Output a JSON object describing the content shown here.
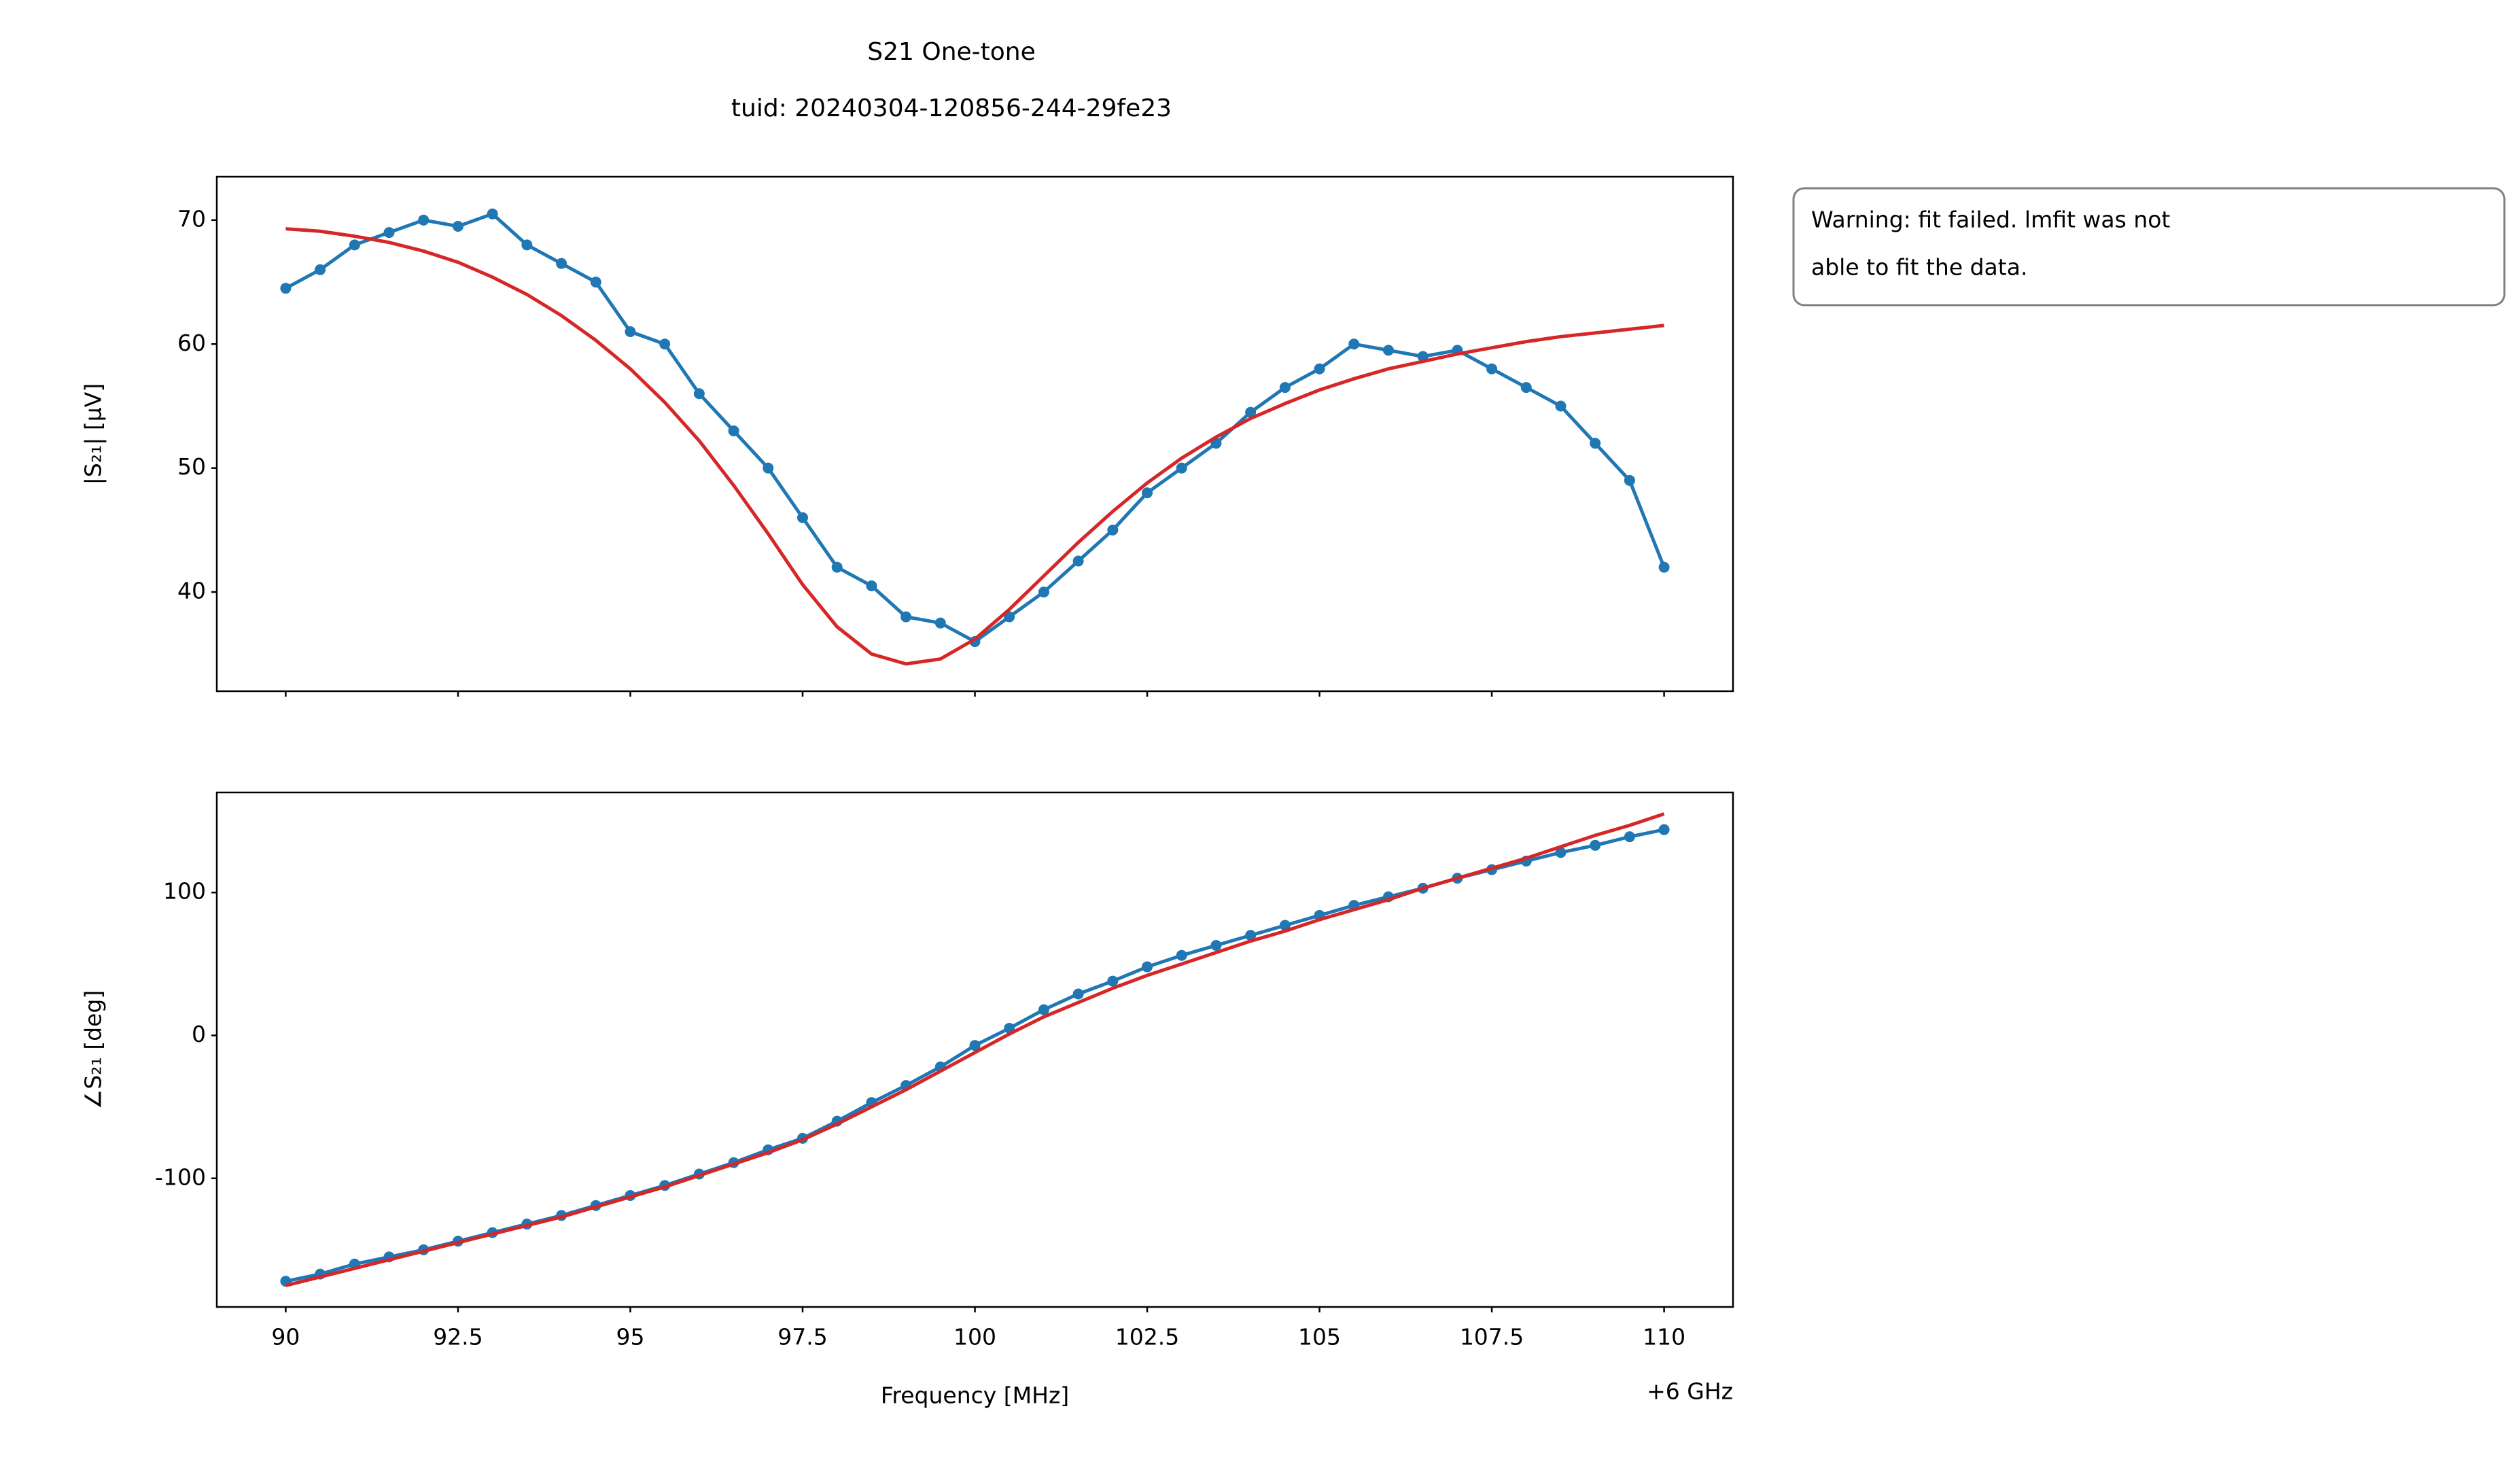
{
  "chart_data": [
    {
      "type": "line",
      "title": "S21 One-tone",
      "subtitle": "tuid: 20240304-120856-244-29fe23",
      "ylabel": "|S₂₁| [µV]",
      "annotation": [
        "Warning: fit failed. lmfit was not",
        "able to fit the data."
      ],
      "x": [
        90,
        90.5,
        91,
        91.5,
        92,
        92.5,
        93,
        93.5,
        94,
        94.5,
        95,
        95.5,
        96,
        96.5,
        97,
        97.5,
        98,
        98.5,
        99,
        99.5,
        100,
        100.5,
        101,
        101.5,
        102,
        102.5,
        103,
        103.5,
        104,
        104.5,
        105,
        105.5,
        106,
        106.5,
        107,
        107.5,
        108,
        108.5,
        109,
        109.5,
        110
      ],
      "xlim": [
        89,
        111
      ],
      "ylim": [
        32,
        73.5
      ],
      "yticks": [
        40,
        50,
        60,
        70
      ],
      "series": [
        {
          "color": "#1f77b4",
          "markers": true,
          "values": [
            64.5,
            66,
            68,
            69,
            70,
            69.5,
            70.5,
            68,
            66.5,
            65,
            61,
            60,
            56,
            53,
            50,
            46,
            42,
            40.5,
            38,
            37.5,
            36,
            38,
            40,
            42.5,
            45,
            48,
            50,
            52,
            54.5,
            56.5,
            58,
            60,
            59.5,
            59,
            59.5,
            58,
            56.5,
            55,
            52,
            49,
            42
          ]
        },
        {
          "color": "#d62728",
          "markers": false,
          "values": [
            69.3,
            69.1,
            68.7,
            68.2,
            67.5,
            66.6,
            65.4,
            64,
            62.3,
            60.3,
            58,
            55.3,
            52.2,
            48.6,
            44.7,
            40.6,
            37.2,
            35,
            34.2,
            34.6,
            36.2,
            38.6,
            41.3,
            44,
            46.5,
            48.8,
            50.8,
            52.5,
            54,
            55.2,
            56.3,
            57.2,
            58,
            58.6,
            59.2,
            59.7,
            60.2,
            60.6,
            60.9,
            61.2,
            61.5
          ]
        }
      ]
    },
    {
      "type": "line",
      "ylabel": "∠S₂₁ [deg]",
      "xlabel": "Frequency [MHz]",
      "x_offset_label": "+6 GHz",
      "x": [
        90,
        90.5,
        91,
        91.5,
        92,
        92.5,
        93,
        93.5,
        94,
        94.5,
        95,
        95.5,
        96,
        96.5,
        97,
        97.5,
        98,
        98.5,
        99,
        99.5,
        100,
        100.5,
        101,
        101.5,
        102,
        102.5,
        103,
        103.5,
        104,
        104.5,
        105,
        105.5,
        106,
        106.5,
        107,
        107.5,
        108,
        108.5,
        109,
        109.5,
        110
      ],
      "xlim": [
        89,
        111
      ],
      "xticks": [
        90,
        92.5,
        95,
        97.5,
        100,
        102.5,
        105,
        107.5,
        110
      ],
      "ylim": [
        -190,
        170
      ],
      "yticks": [
        -100,
        0,
        100
      ],
      "series": [
        {
          "color": "#1f77b4",
          "markers": true,
          "values": [
            -172,
            -167,
            -160,
            -155,
            -150,
            -144,
            -138,
            -132,
            -126,
            -119,
            -112,
            -105,
            -97,
            -89,
            -80,
            -72,
            -60,
            -47,
            -35,
            -22,
            -7,
            5,
            18,
            29,
            38,
            48,
            56,
            63,
            70,
            77,
            84,
            91,
            97,
            103,
            110,
            116,
            122,
            128,
            133,
            139,
            144
          ]
        },
        {
          "color": "#d62728",
          "markers": false,
          "values": [
            -175,
            -169,
            -163,
            -157,
            -151,
            -145,
            -139,
            -133,
            -127,
            -120,
            -113,
            -106,
            -98,
            -90,
            -82,
            -73,
            -62,
            -50,
            -38,
            -25,
            -12,
            1,
            13,
            23,
            33,
            42,
            50,
            58,
            66,
            73,
            81,
            88,
            95,
            103,
            110,
            117,
            124,
            132,
            140,
            147,
            155
          ]
        }
      ]
    }
  ]
}
